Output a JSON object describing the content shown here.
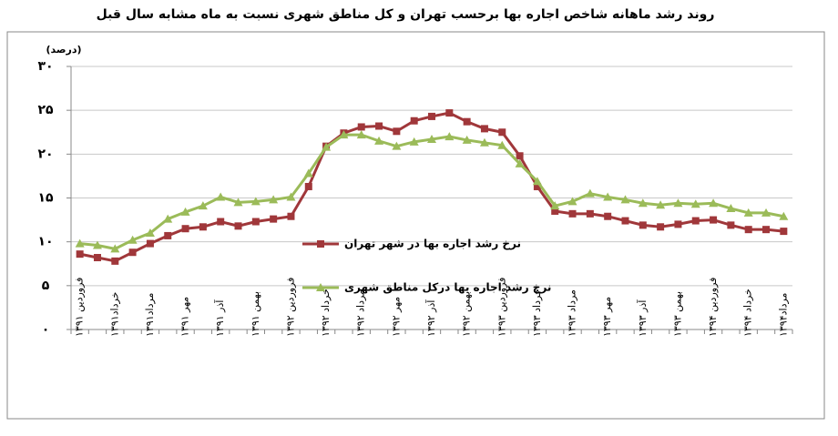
{
  "chart_data": {
    "type": "line",
    "title": "روند رشد ماهانه شاخص  اجاره بها برحسب تهران و کل مناطق شهری نسبت به ماه مشابه سال قبل",
    "y_label": "(درصد)",
    "categories": [
      "فروردین ۱۳۹۱",
      null,
      "خرداد۱۳۹۱",
      null,
      "مرداد۱۳۹۱",
      null,
      "مهر ۱۳۹۱",
      null,
      "آذر ۱۳۹۱",
      null,
      "بهمن ۱۳۹۱",
      null,
      "فروردین ۱۳۹۲",
      null,
      "خرداد ۱۳۹۲",
      null,
      "مرداد ۱۳۹۲",
      null,
      "مهر ۱۳۹۲",
      null,
      "آذر ۱۳۹۲",
      null,
      "بهمن ۱۳۹۲",
      null,
      "فروردین ۱۳۹۳",
      null,
      "خرداد ۱۳۹۳",
      null,
      "مرداد ۱۳۹۳",
      null,
      "مهر ۱۳۹۳",
      null,
      "آذر ۱۳۹۳",
      null,
      "بهمن ۱۳۹۳",
      null,
      "فروردین ۱۳۹۴",
      null,
      "خرداد ۱۳۹۴",
      null,
      "مرداد۱۳۹۴"
    ],
    "series": [
      {
        "name": "نرخ رشد اجاره بها در شهر تهران",
        "color": "#a0373a",
        "marker": "square",
        "values": [
          8.6,
          8.2,
          7.8,
          8.8,
          9.8,
          10.7,
          11.5,
          11.7,
          12.3,
          11.8,
          12.3,
          12.6,
          12.9,
          16.3,
          20.9,
          22.4,
          23.1,
          23.2,
          22.6,
          23.8,
          24.3,
          24.7,
          23.7,
          22.9,
          22.5,
          19.8,
          16.3,
          13.5,
          13.2,
          13.2,
          12.9,
          12.4,
          11.9,
          11.7,
          12.0,
          12.4,
          12.5,
          11.9,
          11.4,
          11.4,
          11.2
        ]
      },
      {
        "name": "نرخ رشد اجاره بها درکل مناطق شهری",
        "color": "#9bbb59",
        "marker": "triangle",
        "values": [
          9.8,
          9.6,
          9.2,
          10.2,
          11.0,
          12.6,
          13.4,
          14.1,
          15.1,
          14.5,
          14.6,
          14.8,
          15.1,
          17.8,
          20.8,
          22.2,
          22.2,
          21.5,
          20.9,
          21.4,
          21.7,
          22.0,
          21.6,
          21.3,
          21.0,
          18.9,
          16.9,
          14.1,
          14.6,
          15.5,
          15.1,
          14.8,
          14.4,
          14.2,
          14.4,
          14.3,
          14.4,
          13.8,
          13.3,
          13.3,
          12.9
        ]
      }
    ],
    "ylim": [
      0,
      30
    ],
    "yticks": [
      {
        "value": 0,
        "label": "۰"
      },
      {
        "value": 5,
        "label": "۵"
      },
      {
        "value": 10,
        "label": "۱۰"
      },
      {
        "value": 15,
        "label": "۱۵"
      },
      {
        "value": 20,
        "label": "۲۰"
      },
      {
        "value": 25,
        "label": "۲۵"
      },
      {
        "value": 30,
        "label": "۳۰"
      }
    ],
    "grid": true
  }
}
